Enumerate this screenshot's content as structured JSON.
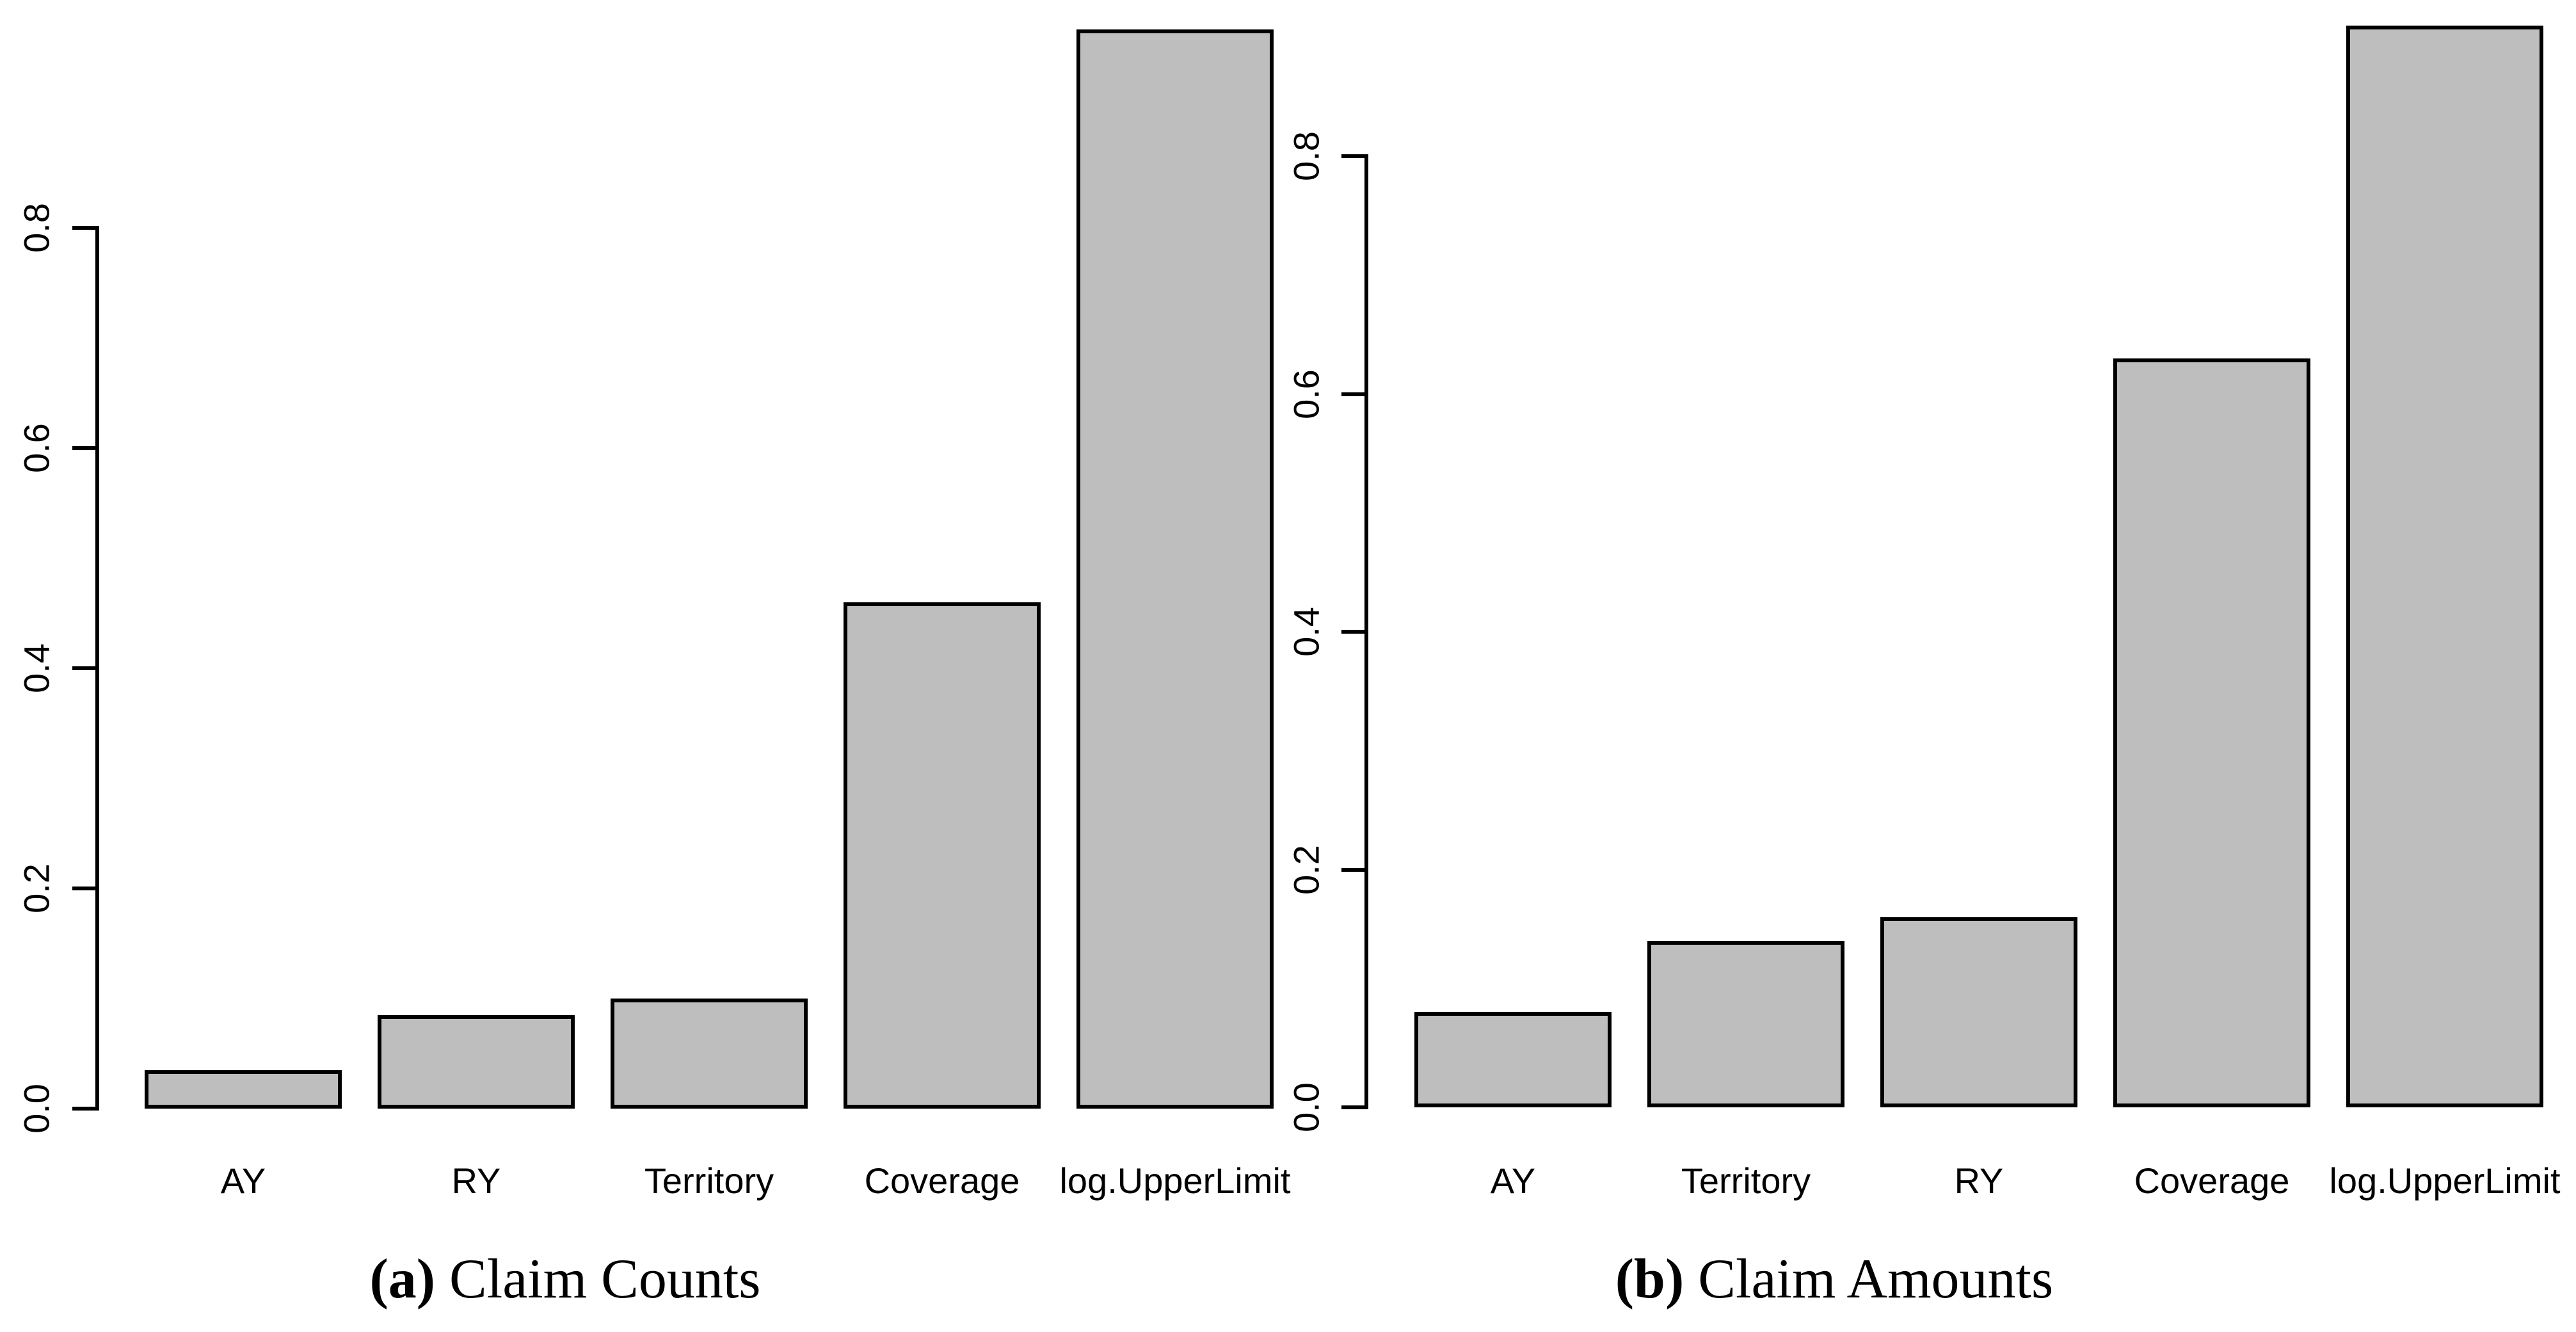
{
  "figure": {
    "background": "#ffffff",
    "bar_fill": "#BEBEBE",
    "bar_border": "#000000"
  },
  "chart_data": [
    {
      "type": "bar",
      "panel": "a",
      "caption_label": "(a)",
      "caption_text": "Claim Counts",
      "categories": [
        "AY",
        "RY",
        "Territory",
        "Coverage",
        "log.UpperLimit"
      ],
      "values": [
        0.035,
        0.085,
        0.1,
        0.46,
        0.98
      ],
      "ytick_labels": [
        "0.0",
        "0.2",
        "0.4",
        "0.6",
        "0.8"
      ],
      "ytick_values": [
        0.0,
        0.2,
        0.4,
        0.6,
        0.8
      ],
      "ylim": [
        0,
        1.0
      ],
      "xlabel": "",
      "ylabel": "",
      "grid": false,
      "legend": false,
      "bar_color": "#BEBEBE",
      "bar_border_color": "#000000"
    },
    {
      "type": "bar",
      "panel": "b",
      "caption_label": "(b)",
      "caption_text": "Claim Amounts",
      "categories": [
        "AY",
        "Territory",
        "RY",
        "Coverage",
        "log.UpperLimit"
      ],
      "values": [
        0.08,
        0.14,
        0.16,
        0.63,
        0.91
      ],
      "ytick_labels": [
        "0.0",
        "0.2",
        "0.4",
        "0.6",
        "0.8"
      ],
      "ytick_values": [
        0.0,
        0.2,
        0.4,
        0.6,
        0.8
      ],
      "ylim": [
        0,
        0.93
      ],
      "xlabel": "",
      "ylabel": "",
      "grid": false,
      "legend": false,
      "bar_color": "#BEBEBE",
      "bar_border_color": "#000000"
    }
  ]
}
